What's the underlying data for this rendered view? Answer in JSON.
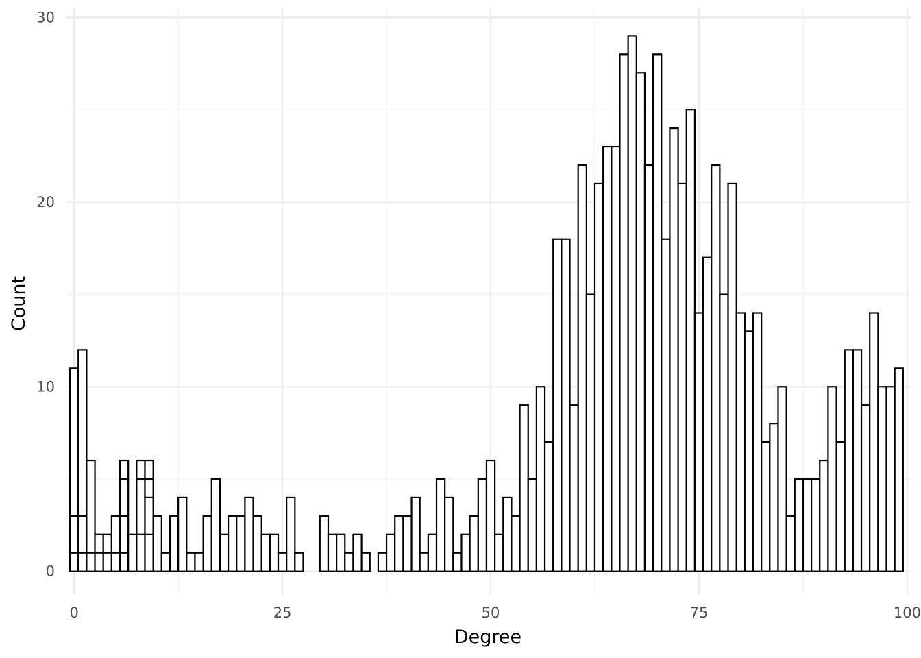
{
  "chart_data": {
    "type": "bar",
    "title": "",
    "xlabel": "Degree",
    "ylabel": "Count",
    "xlim": [
      -1,
      100.5
    ],
    "ylim": [
      -1.2,
      30.5
    ],
    "x_ticks": [
      0,
      25,
      50,
      75,
      100
    ],
    "y_ticks": [
      0,
      10,
      20,
      30
    ],
    "grid": true,
    "bin_width": 1,
    "x": [
      0,
      1,
      2,
      3,
      4,
      5,
      6,
      7,
      8,
      9,
      10,
      11,
      12,
      13,
      14,
      15,
      16,
      17,
      18,
      19,
      20,
      21,
      22,
      23,
      24,
      25,
      26,
      27,
      28,
      29,
      30,
      31,
      32,
      33,
      34,
      35,
      36,
      37,
      38,
      39,
      40,
      41,
      42,
      43,
      44,
      45,
      46,
      47,
      48,
      49,
      50,
      51,
      52,
      53,
      54,
      55,
      56,
      57,
      58,
      59,
      60,
      61,
      62,
      63,
      64,
      65,
      66,
      67,
      68,
      69,
      70,
      71,
      72,
      73,
      74,
      75,
      76,
      77,
      78,
      79,
      80,
      81,
      82,
      83,
      84,
      85,
      86,
      87,
      88,
      89,
      90,
      91,
      92,
      93,
      94,
      95,
      96,
      97,
      98,
      99
    ],
    "values": [
      11,
      12,
      6,
      2,
      2,
      3,
      6,
      2,
      6,
      6,
      3,
      1,
      3,
      4,
      1,
      1,
      3,
      5,
      2,
      3,
      3,
      4,
      3,
      2,
      2,
      1,
      4,
      1,
      0,
      0,
      3,
      2,
      2,
      1,
      2,
      1,
      0,
      1,
      2,
      3,
      3,
      4,
      1,
      2,
      5,
      4,
      1,
      2,
      3,
      5,
      6,
      2,
      4,
      3,
      9,
      5,
      10,
      7,
      18,
      18,
      9,
      22,
      15,
      21,
      23,
      23,
      28,
      29,
      27,
      22,
      28,
      18,
      24,
      21,
      25,
      14,
      17,
      22,
      15,
      21,
      14,
      13,
      14,
      7,
      8,
      10,
      3,
      5,
      5,
      5,
      6,
      10,
      7,
      12,
      12,
      9,
      14,
      10,
      10,
      11
    ],
    "inner_lines": [
      {
        "x": 0,
        "levels": [
          1,
          3
        ]
      },
      {
        "x": 1,
        "levels": [
          1,
          3
        ]
      },
      {
        "x": 2,
        "levels": [
          1
        ]
      },
      {
        "x": 3,
        "levels": [
          1
        ]
      },
      {
        "x": 4,
        "levels": [
          1
        ]
      },
      {
        "x": 5,
        "levels": [
          1
        ]
      },
      {
        "x": 6,
        "levels": [
          1,
          3,
          5
        ]
      },
      {
        "x": 8,
        "levels": [
          2,
          5
        ]
      },
      {
        "x": 9,
        "levels": [
          2,
          4,
          5
        ]
      }
    ]
  }
}
